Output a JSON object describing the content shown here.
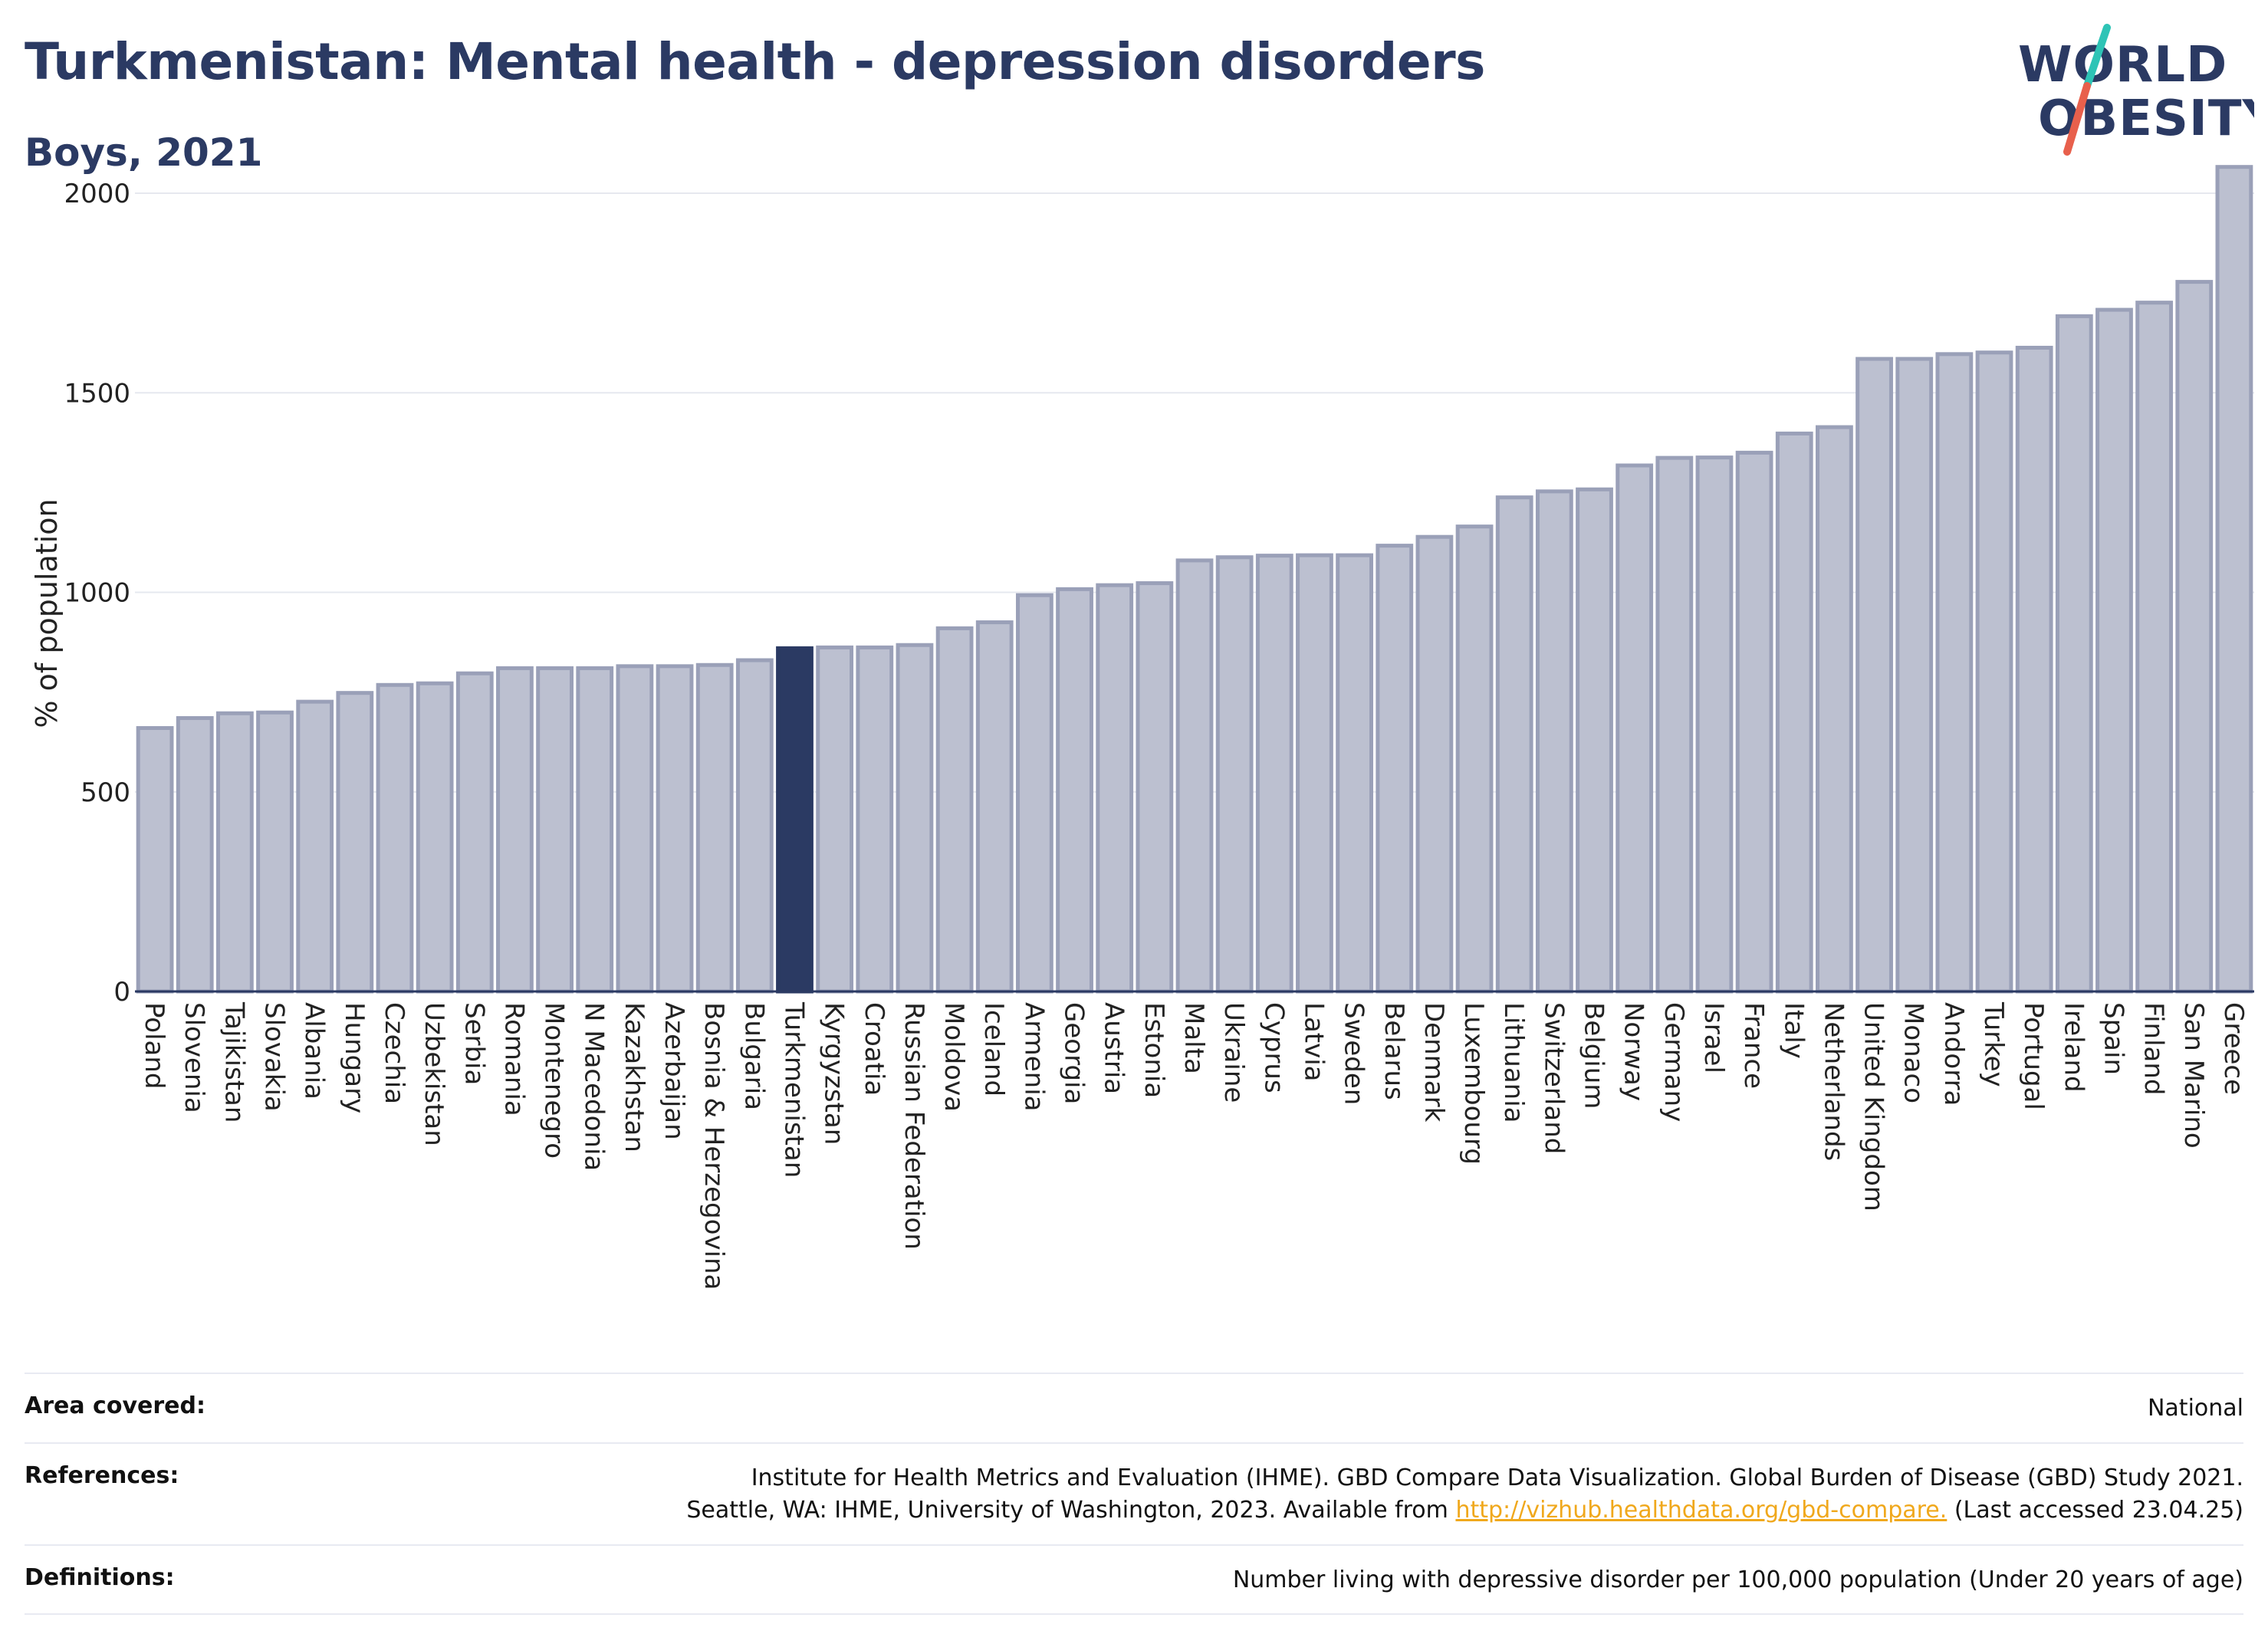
{
  "header": {
    "title": "Turkmenistan: Mental health - depression disorders",
    "subtitle": "Boys, 2021"
  },
  "logo": {
    "line1": "WORLD",
    "line2": "OBESITY",
    "accent_colors": [
      "#2ec4b6",
      "#e8604c"
    ]
  },
  "colors": {
    "bar_default_fill": "#bcc0d0",
    "bar_default_stroke": "#9aa0b8",
    "bar_highlight": "#2b3a63",
    "grid": "#e6e8ef",
    "axis": "#2b3a63"
  },
  "chart_data": {
    "type": "bar",
    "ylabel": "% of population",
    "xlabel": "",
    "ylim": [
      0,
      2100
    ],
    "yticks": [
      0,
      500,
      1000,
      1500,
      2000
    ],
    "grid": true,
    "highlight": "Turkmenistan",
    "categories": [
      "Poland",
      "Slovenia",
      "Tajikistan",
      "Slovakia",
      "Albania",
      "Hungary",
      "Czechia",
      "Uzbekistan",
      "Serbia",
      "Romania",
      "Montenegro",
      "N Macedonia",
      "Kazakhstan",
      "Azerbaijan",
      "Bosnia & Herzegovina",
      "Bulgaria",
      "Turkmenistan",
      "Kyrgyzstan",
      "Croatia",
      "Russian Federation",
      "Moldova",
      "Iceland",
      "Armenia",
      "Georgia",
      "Austria",
      "Estonia",
      "Malta",
      "Ukraine",
      "Cyprus",
      "Latvia",
      "Sweden",
      "Belarus",
      "Denmark",
      "Luxembourg",
      "Lithuania",
      "Switzerland",
      "Belgium",
      "Norway",
      "Germany",
      "Israel",
      "France",
      "Italy",
      "Netherlands",
      "United Kingdom",
      "Monaco",
      "Andorra",
      "Turkey",
      "Portugal",
      "Ireland",
      "Spain",
      "Finland",
      "San Marino",
      "Greece"
    ],
    "values": [
      660,
      685,
      697,
      699,
      726,
      748,
      768,
      772,
      797,
      810,
      810,
      810,
      815,
      815,
      818,
      830,
      860,
      862,
      862,
      868,
      910,
      925,
      993,
      1008,
      1018,
      1023,
      1080,
      1088,
      1092,
      1093,
      1093,
      1117,
      1139,
      1165,
      1238,
      1253,
      1258,
      1318,
      1337,
      1338,
      1350,
      1398,
      1414,
      1585,
      1585,
      1597,
      1601,
      1613,
      1692,
      1708,
      1726,
      1778,
      2066
    ]
  },
  "meta": {
    "area_label": "Area covered:",
    "area_value": "National",
    "references_label": "References:",
    "references_line1": "Institute for Health Metrics and Evaluation (IHME). GBD Compare Data Visualization. Global Burden of Disease (GBD) Study 2021.",
    "references_line2_pre": "Seattle, WA: IHME, University of Washington, 2023. Available from",
    "references_link": "http://vizhub.healthdata.org/gbd-compare.",
    "references_line2_post": "(Last accessed 23.04.25)",
    "definitions_label": "Definitions:",
    "definitions_value": "Number living with depressive disorder per 100,000 population (Under 20 years of age)"
  }
}
